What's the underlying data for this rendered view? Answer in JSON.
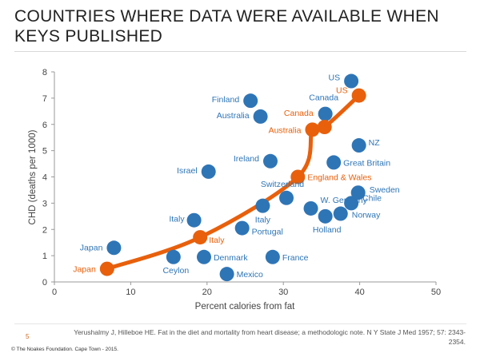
{
  "title": "COUNTRIES WHERE DATA WERE AVAILABLE WHEN KEYS PUBLISHED",
  "footer": {
    "slide_number": "5",
    "citation": "Yerushalmy J, Hilleboe HE. Fat in the diet and mortality from heart disease; a methodologic note. N Y State J Med 1957; 57: 2343-2354.",
    "copyright": "© The Noakes Foundation. Cape Town - 2015."
  },
  "colors": {
    "all_countries": "#2e75b6",
    "keys_countries": "#e8600c",
    "axis": "#999999",
    "text": "#444444"
  },
  "chart_data": {
    "type": "scatter",
    "xlabel": "Percent calories from fat",
    "ylabel": "CHD (deaths per 1000)",
    "xlim": [
      0,
      50
    ],
    "ylim": [
      0,
      8
    ],
    "xticks": [
      0,
      10,
      20,
      30,
      40,
      50
    ],
    "yticks": [
      0,
      1,
      2,
      3,
      4,
      5,
      6,
      7,
      8
    ],
    "grid": false,
    "legend": "none",
    "series": [
      {
        "color": "#2e75b6",
        "points": [
          {
            "label": "Japan",
            "x": 7.8,
            "y": 1.3
          },
          {
            "label": "Ceylon",
            "x": 15.6,
            "y": 0.95
          },
          {
            "label": "Denmark",
            "x": 19.6,
            "y": 0.95
          },
          {
            "label": "Mexico",
            "x": 22.6,
            "y": 0.3
          },
          {
            "label": "France",
            "x": 28.6,
            "y": 0.95
          },
          {
            "label": "Italy",
            "x": 18.3,
            "y": 2.35
          },
          {
            "label": "Portugal",
            "x": 24.6,
            "y": 2.05
          },
          {
            "label": "Italy",
            "x": 27.3,
            "y": 2.9
          },
          {
            "label": "Israel",
            "x": 20.2,
            "y": 4.2
          },
          {
            "label": "Ireland",
            "x": 28.3,
            "y": 4.6
          },
          {
            "label": "Switzerland",
            "x": 30.4,
            "y": 3.2
          },
          {
            "label": "W. Germany",
            "x": 33.6,
            "y": 2.8
          },
          {
            "label": "Holland",
            "x": 35.5,
            "y": 2.5
          },
          {
            "label": "Norway",
            "x": 37.5,
            "y": 2.6
          },
          {
            "label": "Chile",
            "x": 38.9,
            "y": 3.0
          },
          {
            "label": "Sweden",
            "x": 39.8,
            "y": 3.4
          },
          {
            "label": "Great Britain",
            "x": 36.6,
            "y": 4.55
          },
          {
            "label": "NZ",
            "x": 39.9,
            "y": 5.2
          },
          {
            "label": "Finland",
            "x": 25.7,
            "y": 6.9
          },
          {
            "label": "Australia",
            "x": 27.0,
            "y": 6.3
          },
          {
            "label": "Canada",
            "x": 35.5,
            "y": 6.4
          },
          {
            "label": "US",
            "x": 38.9,
            "y": 7.65
          }
        ]
      },
      {
        "color": "#e8600c",
        "points": [
          {
            "label": "Japan",
            "x": 6.9,
            "y": 0.5
          },
          {
            "label": "Italy",
            "x": 19.1,
            "y": 1.7
          },
          {
            "label": "England & Wales",
            "x": 31.9,
            "y": 4.0
          },
          {
            "label": "Australia",
            "x": 33.8,
            "y": 5.8
          },
          {
            "label": "Canada",
            "x": 35.4,
            "y": 5.9
          },
          {
            "label": "US",
            "x": 39.9,
            "y": 7.1
          }
        ]
      }
    ]
  }
}
